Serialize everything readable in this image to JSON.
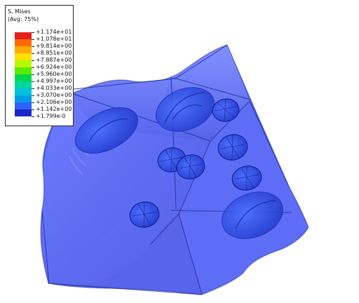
{
  "legend": {
    "title_1": "S, Mises",
    "title_2": "(Avg: 75%)",
    "values": [
      "+1.174e+01",
      "+1.078e+01",
      "+9.814e+00",
      "+8.851e+00",
      "+7.887e+00",
      "+6.924e+00",
      "+5.960e+00",
      "+4.997e+00",
      "+4.033e+00",
      "+3.070e+00",
      "+2.106e+00",
      "+1.142e+00",
      "+1.799e-0"
    ],
    "band_colors": [
      "#e5201b",
      "#ff6b00",
      "#ffa900",
      "#ffe000",
      "#b9f900",
      "#58ec00",
      "#00d84c",
      "#00d69d",
      "#00c3d9",
      "#009ce8",
      "#2d64ff",
      "#1a26cc"
    ]
  },
  "model_colors": {
    "body_fill": "#5c68f2",
    "face_fill": "#6a7bff",
    "edge_stroke": "#1d2ca6",
    "hole_fill": "#2d43d8",
    "hole_stroke": "#0d1c87"
  }
}
